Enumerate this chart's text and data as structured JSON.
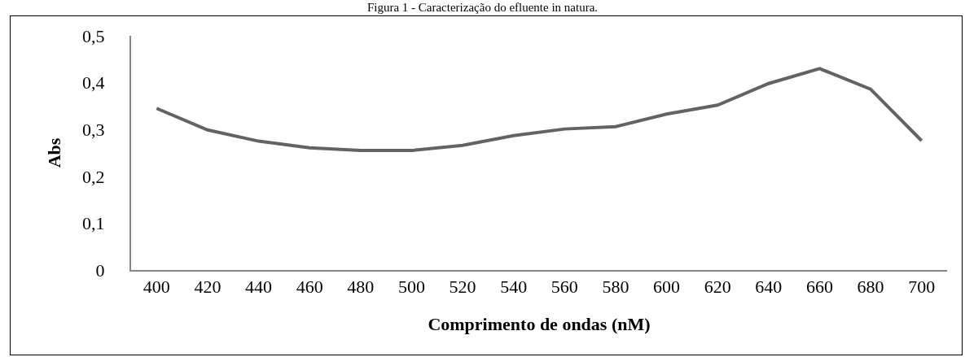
{
  "chart_data": {
    "type": "line",
    "title": "Figura 1 - Caracterização do efluente in natura.",
    "xlabel": "Comprimento de ondas (nM)",
    "ylabel": "Abs",
    "categories": [
      "400",
      "420",
      "440",
      "460",
      "480",
      "500",
      "520",
      "540",
      "560",
      "580",
      "600",
      "620",
      "640",
      "660",
      "680",
      "700"
    ],
    "series": [
      {
        "color": "#636363",
        "values": [
          0.345,
          0.299,
          0.275,
          0.261,
          0.255,
          0.255,
          0.266,
          0.287,
          0.301,
          0.306,
          0.333,
          0.352,
          0.398,
          0.43,
          0.386,
          0.276
        ]
      }
    ],
    "ylim": [
      0,
      0.5
    ],
    "yticks": [
      0,
      {
        "value": 0.1,
        "label": "0,1"
      },
      {
        "value": 0.2,
        "label": "0,2"
      },
      {
        "value": 0.3,
        "label": "0,3"
      },
      {
        "value": 0.4,
        "label": "0,4"
      },
      {
        "value": 0.5,
        "label": "0,5"
      }
    ],
    "grid": false,
    "marker": "none",
    "line_style": "solid"
  }
}
